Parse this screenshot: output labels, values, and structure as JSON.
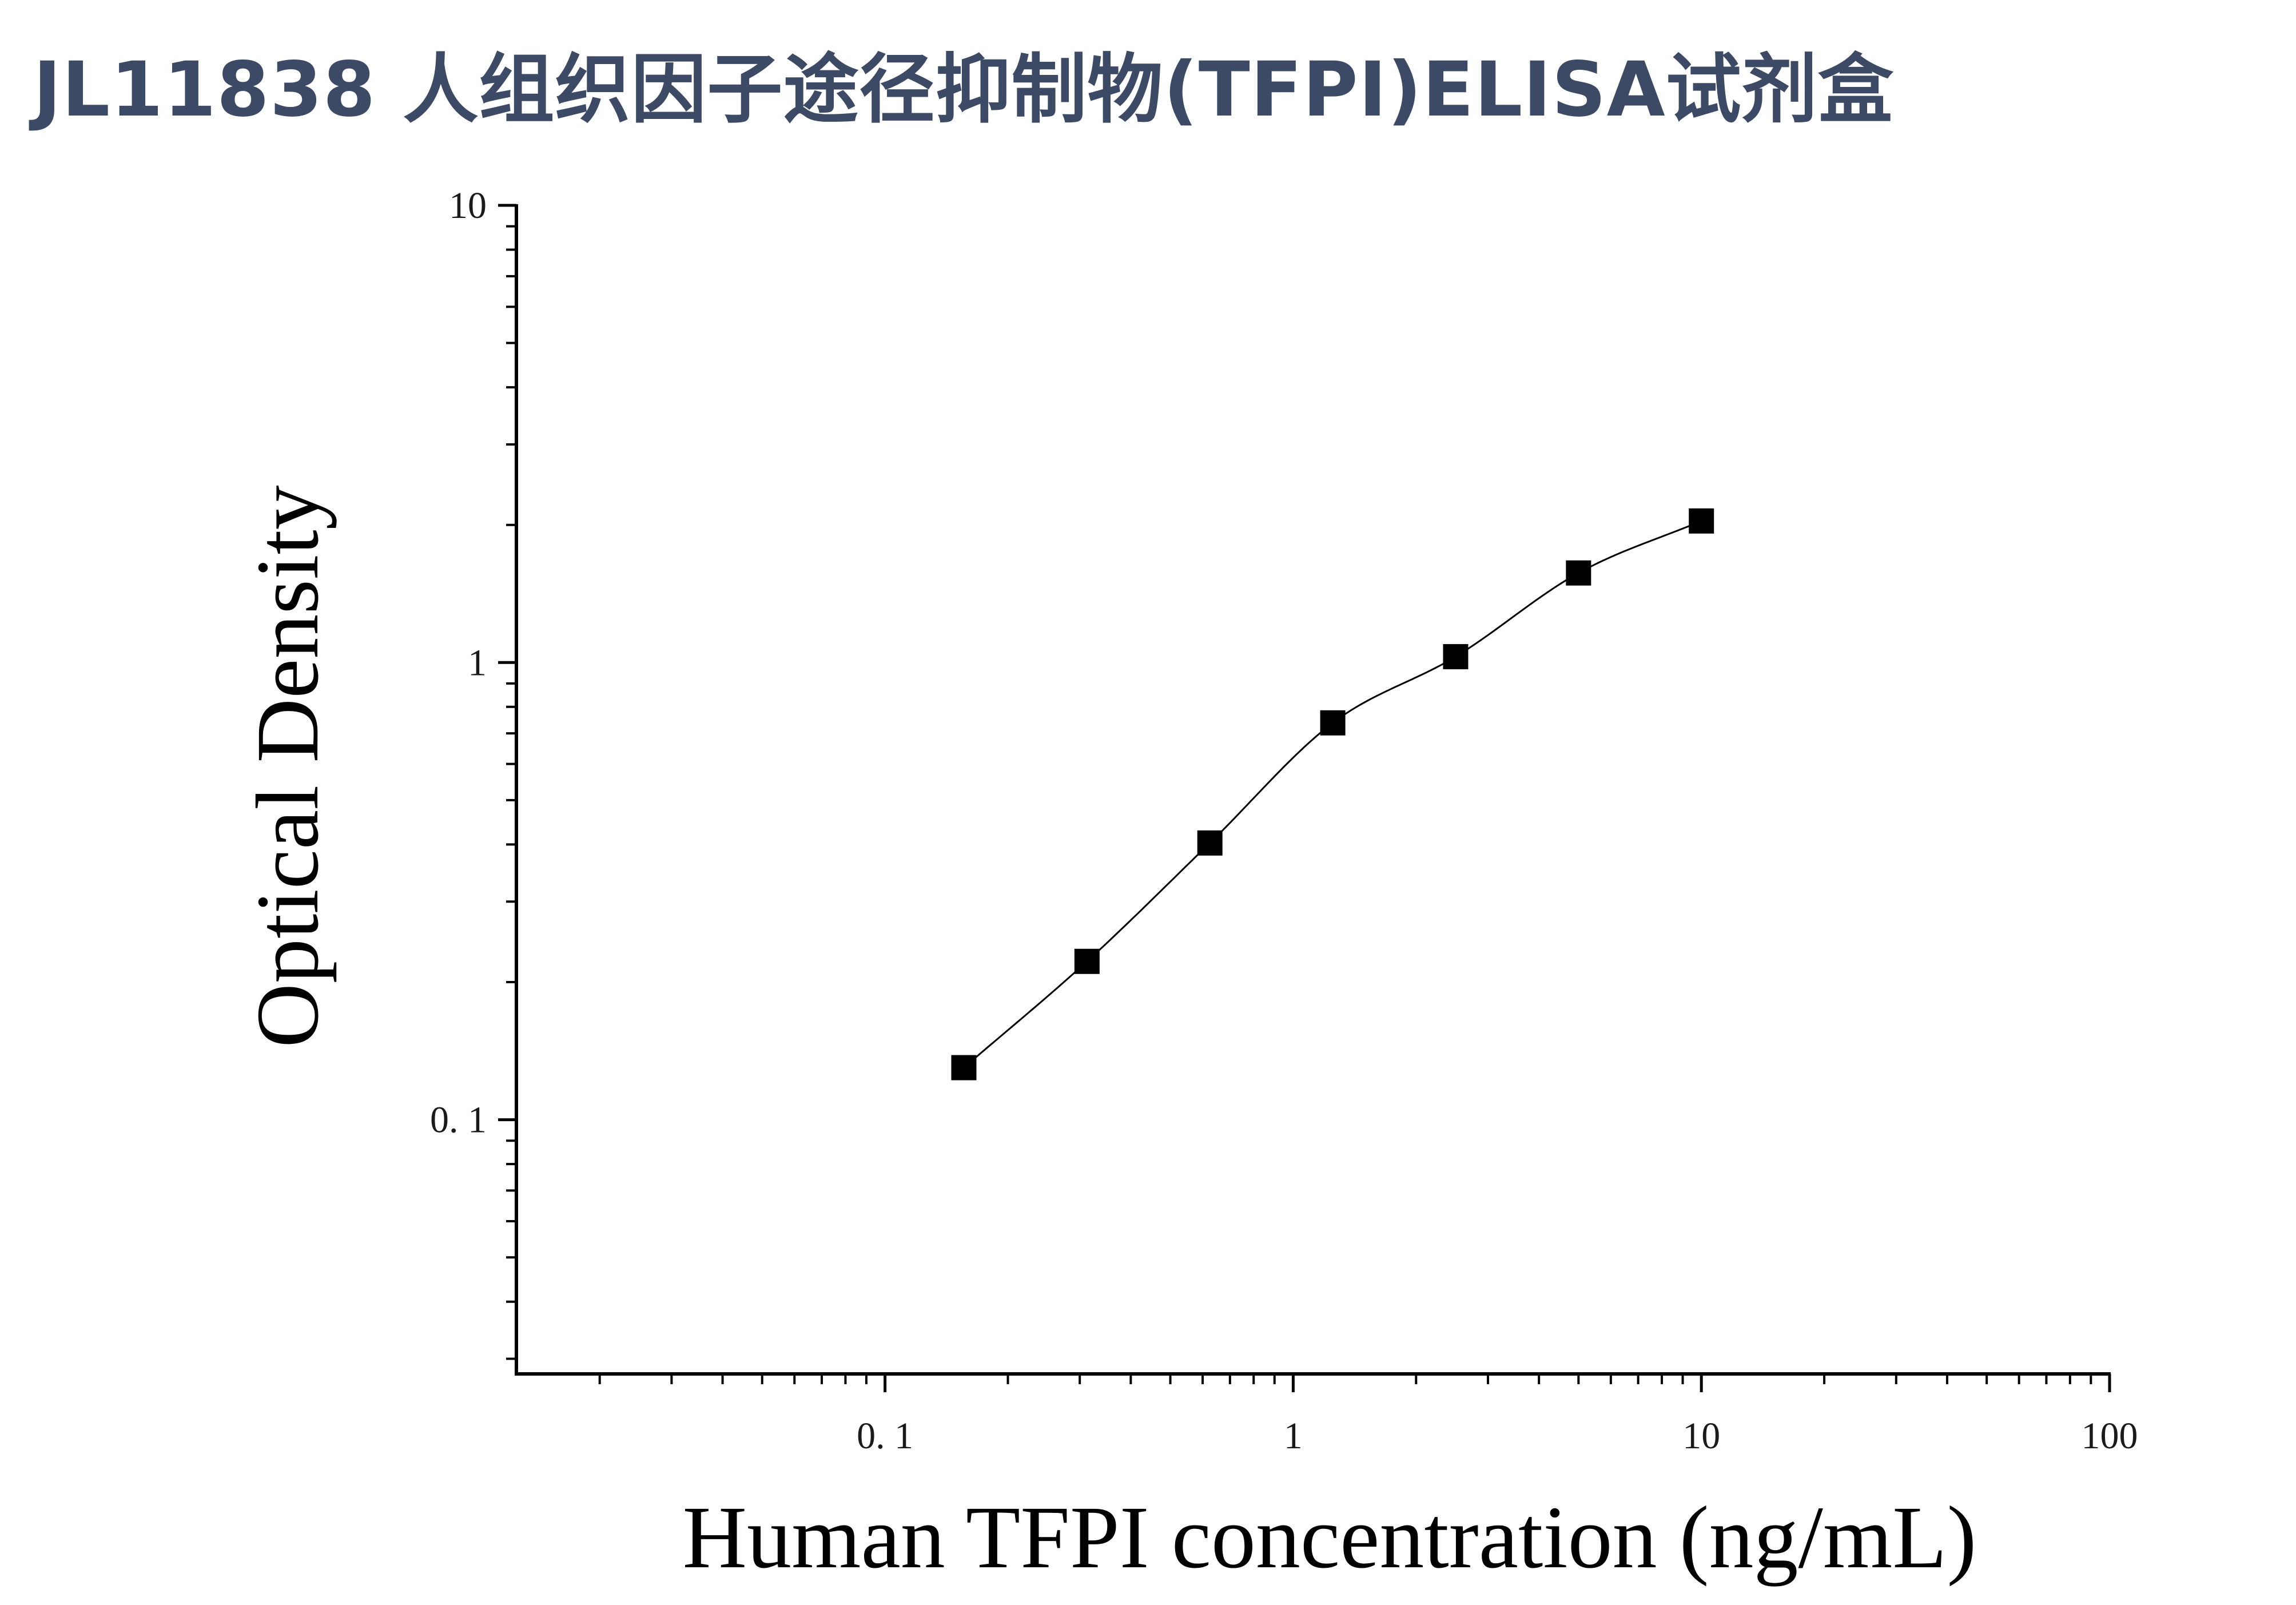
{
  "page": {
    "title": "JL11838 人组织因子途径抑制物(TFPI)ELISA试剂盒",
    "title_color": "#3d4a66"
  },
  "chart_data": {
    "type": "scatter",
    "title": "",
    "xlabel": "Human TFPI concentration (ng/mL)",
    "ylabel": "Optical Density",
    "x_scale": "log",
    "y_scale": "log",
    "xlim": [
      0.0125,
      100
    ],
    "ylim": [
      0.0278,
      10
    ],
    "x_ticks": [
      {
        "value": 0.1,
        "label": "0. 1"
      },
      {
        "value": 1,
        "label": "1"
      },
      {
        "value": 10,
        "label": "10"
      },
      {
        "value": 100,
        "label": "100"
      }
    ],
    "y_ticks": [
      {
        "value": 0.1,
        "label": "0. 1"
      },
      {
        "value": 1,
        "label": "1"
      },
      {
        "value": 10,
        "label": "10"
      }
    ],
    "grid": false,
    "legend": "none",
    "marker": "square",
    "marker_color": "#000000",
    "fit_line": "smooth curve through points",
    "series": [
      {
        "x": [
          0.156,
          0.3125,
          0.625,
          1.25,
          2.5,
          5,
          10
        ],
        "y": [
          0.13,
          0.222,
          0.403,
          0.738,
          1.03,
          1.57,
          2.04
        ]
      }
    ]
  }
}
